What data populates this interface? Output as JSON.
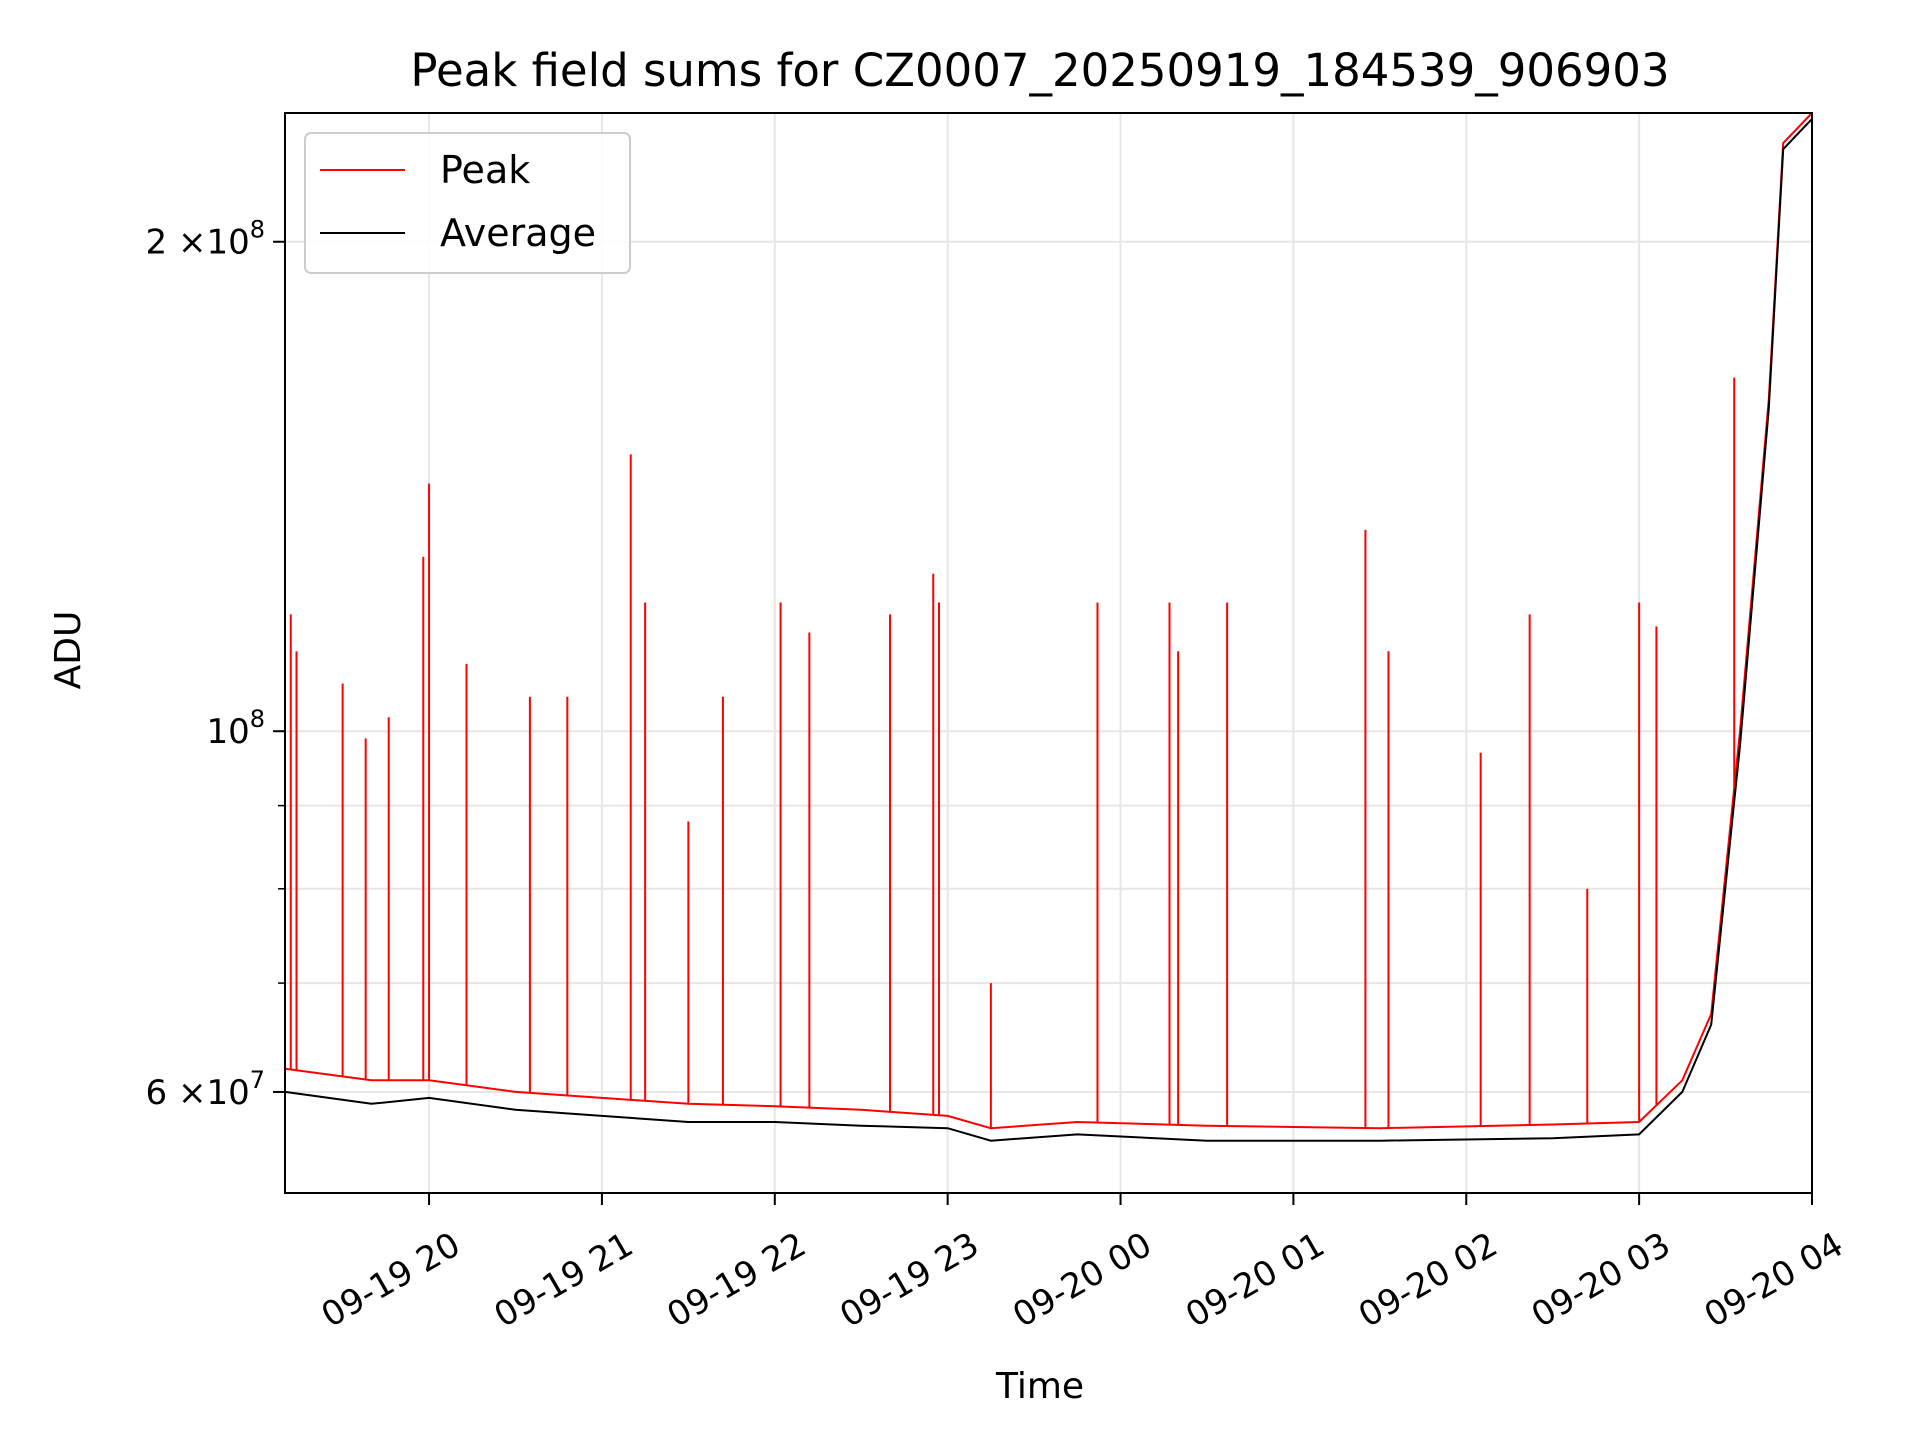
{
  "chart_data": {
    "type": "line",
    "title": "Peak field sums for CZ0007_20250919_184539_906903",
    "xlabel": "Time",
    "ylabel": "ADU",
    "yscale": "log",
    "ylim": [
      52000000,
      240000000
    ],
    "xlim": [
      "2025-09-19 19:10",
      "2025-09-20 04:00"
    ],
    "grid": true,
    "legend_position": "upper left",
    "x_ticks": [
      {
        "value": "2025-09-19 20:00",
        "label": "09-19 20"
      },
      {
        "value": "2025-09-19 21:00",
        "label": "09-19 21"
      },
      {
        "value": "2025-09-19 22:00",
        "label": "09-19 22"
      },
      {
        "value": "2025-09-19 23:00",
        "label": "09-19 23"
      },
      {
        "value": "2025-09-20 00:00",
        "label": "09-20 00"
      },
      {
        "value": "2025-09-20 01:00",
        "label": "09-20 01"
      },
      {
        "value": "2025-09-20 02:00",
        "label": "09-20 02"
      },
      {
        "value": "2025-09-20 03:00",
        "label": "09-20 03"
      },
      {
        "value": "2025-09-20 04:00",
        "label": "09-20 04"
      }
    ],
    "y_ticks_major": [
      {
        "value": 60000000,
        "mantissa": "6",
        "base": "×10",
        "exp": "7"
      },
      {
        "value": 100000000,
        "mantissa": "",
        "base": "10",
        "exp": "8"
      },
      {
        "value": 200000000,
        "mantissa": "2",
        "base": "×10",
        "exp": "8"
      }
    ],
    "y_ticks_minor": [
      70000000,
      80000000,
      90000000,
      300000000
    ],
    "series": [
      {
        "name": "Peak",
        "color": "#ff0000",
        "points": [
          [
            "2025-09-19 19:10",
            62000000
          ],
          [
            "2025-09-19 19:40",
            61000000
          ],
          [
            "2025-09-19 20:00",
            61000000
          ],
          [
            "2025-09-19 20:30",
            60000000
          ],
          [
            "2025-09-19 21:00",
            59500000
          ],
          [
            "2025-09-19 21:30",
            59000000
          ],
          [
            "2025-09-19 22:00",
            58800000
          ],
          [
            "2025-09-19 22:30",
            58500000
          ],
          [
            "2025-09-19 23:00",
            58000000
          ],
          [
            "2025-09-19 23:15",
            57000000
          ],
          [
            "2025-09-19 23:45",
            57500000
          ],
          [
            "2025-09-20 00:30",
            57200000
          ],
          [
            "2025-09-20 01:30",
            57000000
          ],
          [
            "2025-09-20 02:30",
            57300000
          ],
          [
            "2025-09-20 03:00",
            57500000
          ],
          [
            "2025-09-20 03:15",
            61000000
          ],
          [
            "2025-09-20 03:25",
            67000000
          ],
          [
            "2025-09-20 03:35",
            100000000
          ],
          [
            "2025-09-20 03:45",
            160000000
          ],
          [
            "2025-09-20 03:50",
            230000000
          ],
          [
            "2025-09-20 04:00",
            240000000
          ]
        ],
        "spikes": [
          [
            "2025-09-19 19:12",
            118000000
          ],
          [
            "2025-09-19 19:14",
            112000000
          ],
          [
            "2025-09-19 19:30",
            107000000
          ],
          [
            "2025-09-19 19:38",
            99000000
          ],
          [
            "2025-09-19 19:46",
            102000000
          ],
          [
            "2025-09-19 19:58",
            128000000
          ],
          [
            "2025-09-19 20:00",
            142000000
          ],
          [
            "2025-09-19 20:13",
            110000000
          ],
          [
            "2025-09-19 20:35",
            105000000
          ],
          [
            "2025-09-19 20:48",
            105000000
          ],
          [
            "2025-09-19 21:10",
            148000000
          ],
          [
            "2025-09-19 21:15",
            120000000
          ],
          [
            "2025-09-19 21:30",
            88000000
          ],
          [
            "2025-09-19 21:42",
            105000000
          ],
          [
            "2025-09-19 22:02",
            120000000
          ],
          [
            "2025-09-19 22:12",
            115000000
          ],
          [
            "2025-09-19 22:40",
            118000000
          ],
          [
            "2025-09-19 22:55",
            125000000
          ],
          [
            "2025-09-19 22:57",
            120000000
          ],
          [
            "2025-09-19 23:15",
            70000000
          ],
          [
            "2025-09-19 23:52",
            120000000
          ],
          [
            "2025-09-20 00:17",
            120000000
          ],
          [
            "2025-09-20 00:20",
            112000000
          ],
          [
            "2025-09-20 00:37",
            120000000
          ],
          [
            "2025-09-20 01:25",
            133000000
          ],
          [
            "2025-09-20 01:33",
            112000000
          ],
          [
            "2025-09-20 02:05",
            97000000
          ],
          [
            "2025-09-20 02:22",
            118000000
          ],
          [
            "2025-09-20 02:42",
            80000000
          ],
          [
            "2025-09-20 03:00",
            120000000
          ],
          [
            "2025-09-20 03:06",
            116000000
          ],
          [
            "2025-09-20 03:33",
            165000000
          ]
        ]
      },
      {
        "name": "Average",
        "color": "#000000",
        "points": [
          [
            "2025-09-19 19:10",
            60000000
          ],
          [
            "2025-09-19 19:40",
            59000000
          ],
          [
            "2025-09-19 20:00",
            59500000
          ],
          [
            "2025-09-19 20:30",
            58500000
          ],
          [
            "2025-09-19 21:00",
            58000000
          ],
          [
            "2025-09-19 21:30",
            57500000
          ],
          [
            "2025-09-19 22:00",
            57500000
          ],
          [
            "2025-09-19 22:30",
            57200000
          ],
          [
            "2025-09-19 23:00",
            57000000
          ],
          [
            "2025-09-19 23:15",
            56000000
          ],
          [
            "2025-09-19 23:45",
            56500000
          ],
          [
            "2025-09-20 00:30",
            56000000
          ],
          [
            "2025-09-20 01:30",
            56000000
          ],
          [
            "2025-09-20 02:30",
            56200000
          ],
          [
            "2025-09-20 03:00",
            56500000
          ],
          [
            "2025-09-20 03:15",
            60000000
          ],
          [
            "2025-09-20 03:25",
            66000000
          ],
          [
            "2025-09-20 03:35",
            98000000
          ],
          [
            "2025-09-20 03:45",
            158000000
          ],
          [
            "2025-09-20 03:50",
            228000000
          ],
          [
            "2025-09-20 04:00",
            238000000
          ]
        ]
      }
    ]
  }
}
